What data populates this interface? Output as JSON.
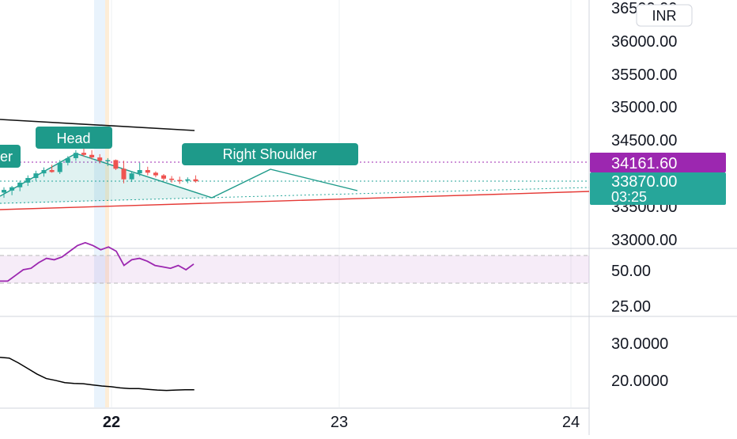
{
  "currency": "INR",
  "price_axis": {
    "ticks": [
      "36500.00",
      "36000.00",
      "35500.00",
      "35000.00",
      "34500.00",
      "33500.00",
      "33000.00"
    ]
  },
  "rsi_axis": {
    "ticks": [
      "50.00",
      "25.00"
    ]
  },
  "osc_axis": {
    "ticks": [
      "30.0000",
      "20.0000"
    ]
  },
  "time_axis": {
    "ticks": [
      "22",
      "23",
      "24"
    ]
  },
  "price_badges": {
    "level": {
      "value": "34161.60",
      "color": "#9c27b0"
    },
    "last": {
      "value": "33870.00",
      "countdown": "03:25",
      "color": "#26a69a"
    }
  },
  "pattern_labels": {
    "left_shoulder": "er",
    "head": "Head",
    "right_shoulder": "Right Shoulder",
    "color": "#1e9a8a"
  },
  "colors": {
    "up": "#26a69a",
    "down": "#ef5350",
    "rsi": "#9c27b0",
    "trend_red": "#e53935",
    "oscillator": "#000000"
  },
  "chart_data": [
    {
      "type": "candlestick",
      "currency": "INR",
      "x_ticks": [
        "22",
        "23",
        "24"
      ],
      "ylim": [
        32900,
        36650
      ],
      "candles": [
        {
          "o": 33700,
          "h": 33780,
          "l": 33620,
          "c": 33740
        },
        {
          "o": 33730,
          "h": 33800,
          "l": 33660,
          "c": 33780
        },
        {
          "o": 33780,
          "h": 33880,
          "l": 33720,
          "c": 33850
        },
        {
          "o": 33850,
          "h": 33960,
          "l": 33800,
          "c": 33920
        },
        {
          "o": 33920,
          "h": 34030,
          "l": 33880,
          "c": 33990
        },
        {
          "o": 33990,
          "h": 34080,
          "l": 33940,
          "c": 34040
        },
        {
          "o": 34040,
          "h": 34120,
          "l": 34000,
          "c": 34010
        },
        {
          "o": 34010,
          "h": 34190,
          "l": 33980,
          "c": 34150
        },
        {
          "o": 34150,
          "h": 34250,
          "l": 34110,
          "c": 34220
        },
        {
          "o": 34220,
          "h": 34340,
          "l": 34180,
          "c": 34300
        },
        {
          "o": 34300,
          "h": 34400,
          "l": 34240,
          "c": 34270
        },
        {
          "o": 34270,
          "h": 34340,
          "l": 34200,
          "c": 34230
        },
        {
          "o": 34230,
          "h": 34280,
          "l": 34140,
          "c": 34180
        },
        {
          "o": 34180,
          "h": 34220,
          "l": 34100,
          "c": 34190
        },
        {
          "o": 34190,
          "h": 34200,
          "l": 34040,
          "c": 34060
        },
        {
          "o": 34060,
          "h": 34180,
          "l": 33840,
          "c": 33900
        },
        {
          "o": 33900,
          "h": 34020,
          "l": 33860,
          "c": 33990
        },
        {
          "o": 33990,
          "h": 34150,
          "l": 33950,
          "c": 34040
        },
        {
          "o": 34040,
          "h": 34090,
          "l": 33960,
          "c": 34000
        },
        {
          "o": 34000,
          "h": 34020,
          "l": 33930,
          "c": 33960
        },
        {
          "o": 33960,
          "h": 33980,
          "l": 33880,
          "c": 33910
        },
        {
          "o": 33910,
          "h": 33950,
          "l": 33850,
          "c": 33890
        },
        {
          "o": 33890,
          "h": 33940,
          "l": 33830,
          "c": 33880
        },
        {
          "o": 33880,
          "h": 33930,
          "l": 33840,
          "c": 33900
        },
        {
          "o": 33900,
          "h": 33960,
          "l": 33850,
          "c": 33870
        }
      ],
      "horizontal_levels": [
        34161.6,
        33870.0
      ]
    },
    {
      "type": "line",
      "ylim": [
        13,
        78
      ],
      "band": [
        40,
        60
      ],
      "y_ticks": [
        50,
        25
      ],
      "values": [
        42,
        42,
        46,
        50,
        51,
        55,
        58,
        57,
        59,
        63,
        67,
        69,
        67,
        64,
        66,
        63,
        53,
        57,
        58,
        56,
        53,
        52,
        51,
        53,
        50,
        54
      ]
    },
    {
      "type": "line",
      "y_ticks": [
        30,
        20
      ],
      "ylim": [
        13.5,
        36.5
      ],
      "values": [
        26.0,
        25.8,
        24.5,
        23.0,
        21.5,
        20.3,
        19.8,
        19.2,
        19.0,
        18.9,
        18.6,
        18.3,
        18.1,
        17.8,
        17.6,
        17.6,
        17.4,
        17.2,
        17.1,
        17.2,
        17.3,
        17.3
      ]
    }
  ]
}
